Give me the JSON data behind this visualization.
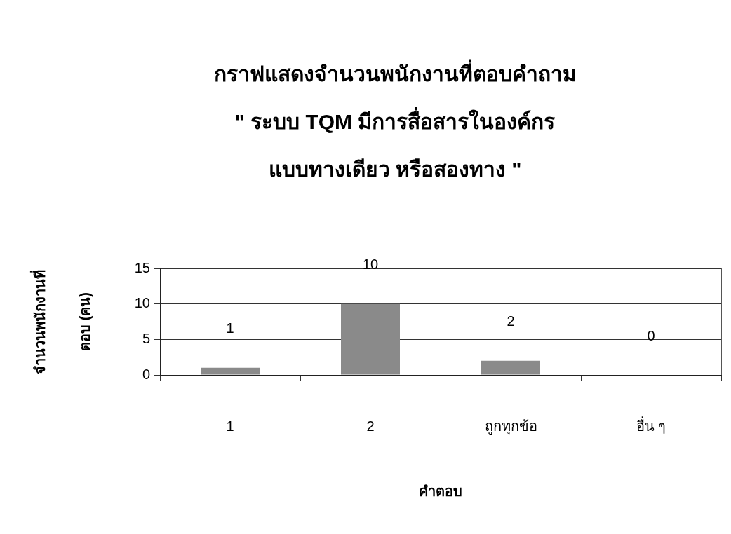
{
  "chart_data": {
    "type": "bar",
    "title": "กราฟแสดงจำนวนพนักงานที่ตอบคำถาม\n\" ระบบ TQM มีการสื่อสารในองค์กร\nแบบทางเดียว หรือสองทาง \"",
    "xlabel": "คำตอบ",
    "ylabel": "จำนวนพนักงานที่\nตอบ (คน)",
    "categories": [
      "1",
      "2",
      "ถูกทุกข้อ",
      "อื่น ๆ"
    ],
    "values": [
      1,
      10,
      2,
      0
    ],
    "color": "#8a8a8a",
    "ylim": [
      0,
      15
    ],
    "yticks": [
      0,
      5,
      10,
      15
    ],
    "grid": "y",
    "data_labels": true
  }
}
